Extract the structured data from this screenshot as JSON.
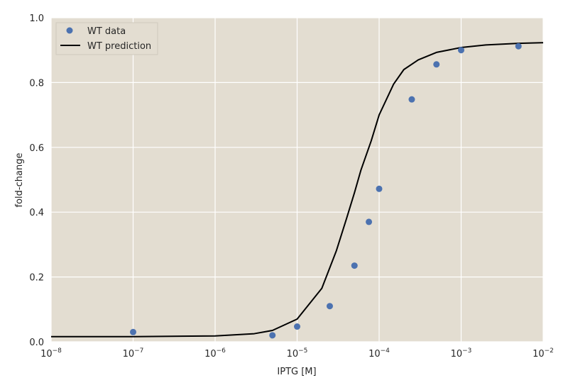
{
  "chart_data": {
    "type": "scatter",
    "xlabel": "IPTG [M]",
    "ylabel": "fold-change",
    "xscale": "log",
    "xlim": [
      1e-08,
      0.01
    ],
    "ylim": [
      0.0,
      1.0
    ],
    "x_tick_labels": [
      {
        "base": "10",
        "exp": "−8"
      },
      {
        "base": "10",
        "exp": "−7"
      },
      {
        "base": "10",
        "exp": "−6"
      },
      {
        "base": "10",
        "exp": "−5"
      },
      {
        "base": "10",
        "exp": "−4"
      },
      {
        "base": "10",
        "exp": "−3"
      },
      {
        "base": "10",
        "exp": "−2"
      }
    ],
    "y_tick_labels": [
      "0.0",
      "0.2",
      "0.4",
      "0.6",
      "0.8",
      "1.0"
    ],
    "grid": true,
    "legend_position": "top-left",
    "background_color": "#e3ddd1",
    "grid_color": "#ffffff",
    "series": [
      {
        "name": "WT data",
        "kind": "scatter",
        "color": "#4c72b0",
        "x": [
          1e-07,
          5e-06,
          1e-05,
          2.5e-05,
          5e-05,
          7.5e-05,
          0.0001,
          0.00025,
          0.0005,
          0.001,
          0.005
        ],
        "y": [
          0.03,
          0.02,
          0.047,
          0.11,
          0.235,
          0.37,
          0.472,
          0.748,
          0.856,
          0.9,
          0.912
        ]
      },
      {
        "name": "WT prediction",
        "kind": "line",
        "color": "#000000",
        "x": [
          1e-08,
          1e-07,
          1e-06,
          3e-06,
          5e-06,
          1e-05,
          2e-05,
          3e-05,
          4e-05,
          5e-05,
          6e-05,
          8e-05,
          0.0001,
          0.00015,
          0.0002,
          0.0003,
          0.0005,
          0.001,
          0.002,
          0.005,
          0.01
        ],
        "y": [
          0.016,
          0.016,
          0.018,
          0.025,
          0.035,
          0.07,
          0.165,
          0.28,
          0.38,
          0.46,
          0.53,
          0.62,
          0.7,
          0.795,
          0.84,
          0.87,
          0.893,
          0.908,
          0.916,
          0.921,
          0.923
        ]
      }
    ]
  }
}
